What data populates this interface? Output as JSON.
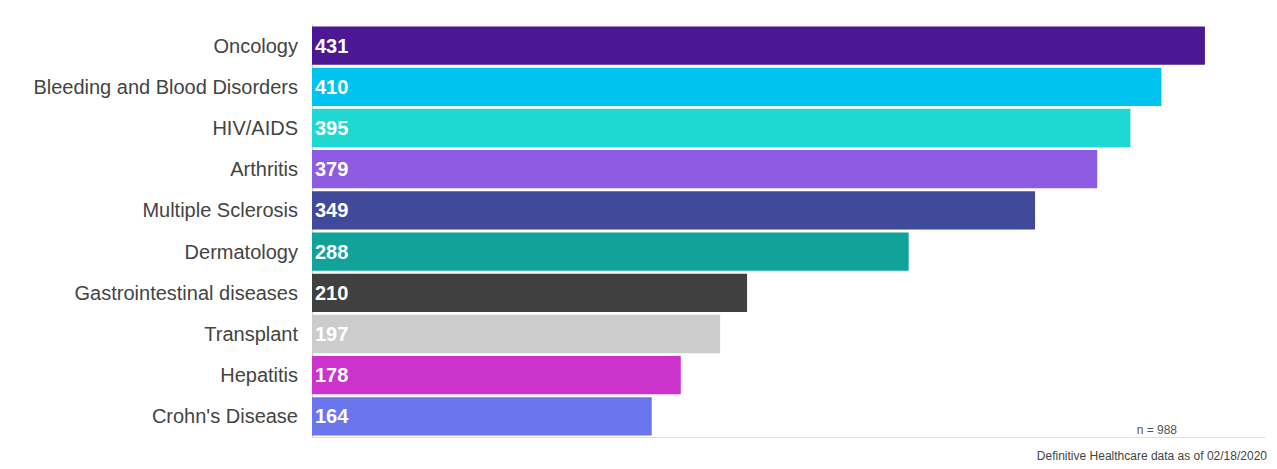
{
  "chart_data": {
    "type": "bar",
    "orientation": "horizontal",
    "categories": [
      "Oncology",
      "Bleeding and Blood Disorders",
      "HIV/AIDS",
      "Arthritis",
      "Multiple Sclerosis",
      "Dermatology",
      "Gastrointestinal diseases",
      "Transplant",
      "Hepatitis",
      "Crohn's Disease"
    ],
    "values": [
      431,
      410,
      395,
      379,
      349,
      288,
      210,
      197,
      178,
      164
    ],
    "colors": [
      "#4b1795",
      "#00c3f0",
      "#1fd8d2",
      "#8e5be3",
      "#414a9a",
      "#11a39a",
      "#404040",
      "#cccccc",
      "#cc33cc",
      "#6b75ee"
    ],
    "xlim": [
      0,
      460
    ],
    "data_labels": true,
    "tick_labels": "y",
    "grid": false,
    "annotations": [
      "n = 988",
      "Definitive Healthcare data as of 02/18/2020"
    ]
  }
}
